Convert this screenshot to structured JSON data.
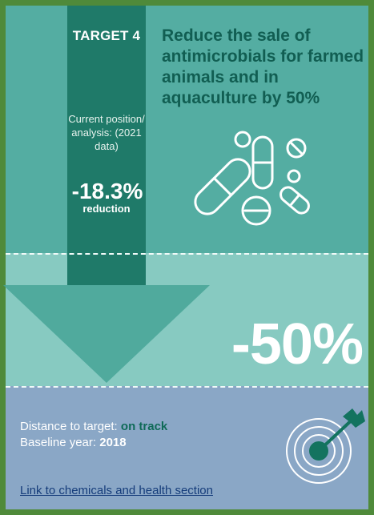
{
  "target": {
    "label": "TARGET 4",
    "headline": "Reduce the sale of antimicrobials for farmed animals and in aquaculture by 50%",
    "target_value": "-50%"
  },
  "current": {
    "position_label": "Current position/ analysis: (2021 data)",
    "value": "-18.3%",
    "unit": "reduction"
  },
  "status": {
    "distance_label": "Distance to target:",
    "distance_value": "on track",
    "baseline_label": "Baseline year:",
    "baseline_value": "2018"
  },
  "link": {
    "text": "Link to chemicals and health section"
  },
  "icons": {
    "pills": "pills-icon",
    "target": "target-arrow-icon"
  },
  "colors": {
    "frame_green": "#4f8a3a",
    "arrow_dark_teal": "#1f7a69",
    "headline_teal": "#115e52",
    "status_teal": "#0f6a57",
    "lower_blue": "#8aa7c6"
  }
}
